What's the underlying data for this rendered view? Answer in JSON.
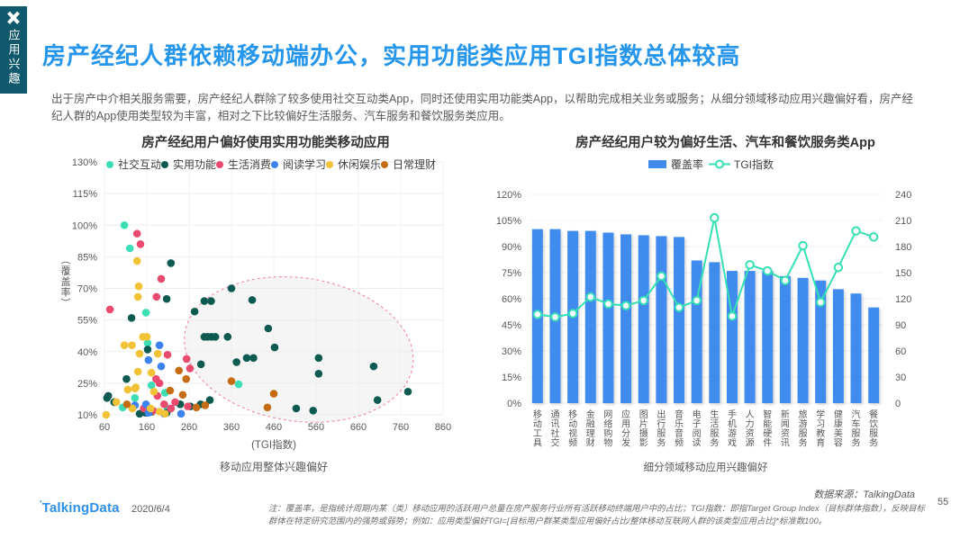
{
  "page": {
    "side_tab": {
      "label": "应用兴趣"
    },
    "title": "房产经纪人群依赖移动端办公，实用功能类应用TGI指数总体较高",
    "paragraph": "出于房产中介相关服务需要，房产经纪人群除了较多使用社交互动类App，同时还使用实用功能类App，以帮助完成相关业务或服务；从细分领域移动应用兴趣偏好看，房产经纪人群的App使用类型较为丰富，相对之下比较偏好生活服务、汽车服务和餐饮服务类应用。",
    "footer": {
      "logo": "TalkingData",
      "date": "2020/6/4",
      "note": "注：覆盖率，是指统计周期内某（类）移动应用的活跃用户总量在房产服务行业所有活跃移动终端用户中的占比；TGI指数：即指Target Group Index（目标群体指数），反映目标群体在特定研究范围内的强势或弱势；例如：应用类型偏好TGI=[目标用户群某类型应用偏好占比/整体移动互联网人群的该类型应用占比]*标准数100。",
      "page_number": "55"
    },
    "colors": {
      "accent_blue": "#2696ed",
      "bar_blue": "#3f8cee",
      "mint": "#35e0b4",
      "tab_teal": "#10586c"
    }
  },
  "chart_data": [
    {
      "type": "scatter",
      "title": "房产经纪用户偏好使用实用功能类移动应用",
      "xlabel": "(TGI指数)",
      "xlabel_caption": "移动应用整体兴趣偏好",
      "ylabel": "（覆盖率）",
      "xlim": [
        60,
        860
      ],
      "ylim": [
        10,
        130
      ],
      "xticks": [
        60,
        160,
        260,
        360,
        460,
        560,
        660,
        760,
        860
      ],
      "yticks": [
        "10%",
        "25%",
        "40%",
        "55%",
        "70%",
        "85%",
        "100%",
        "115%",
        "130%"
      ],
      "grid": true,
      "legend_position": "top",
      "highlight_ellipse": {
        "center_tgi": 519,
        "center_coverage": 41,
        "rx_tgi": 272,
        "ry_coverage": 34,
        "rotate_deg": 8,
        "stroke": "#f093b0",
        "fill": "#ededed"
      },
      "series": [
        {
          "name": "社交互动",
          "color": "#3cdfb5",
          "points": [
            [
              107,
              100
            ],
            [
              120,
              89
            ],
            [
              158,
              58.5
            ],
            [
              162,
              44
            ],
            [
              377,
              24.5
            ],
            [
              171,
              24
            ],
            [
              203,
              20.5
            ],
            [
              132,
              18
            ],
            [
              103,
              13.5
            ],
            [
              209,
              13
            ]
          ]
        },
        {
          "name": "实用功能",
          "color": "#0d5a50",
          "points": [
            [
              217,
              82
            ],
            [
              207,
              65
            ],
            [
              124,
              56
            ],
            [
              162,
              41
            ],
            [
              112,
              27
            ],
            [
              69,
              19
            ],
            [
              66,
              18
            ],
            [
              83,
              16
            ],
            [
              296,
              64
            ],
            [
              312,
              64
            ],
            [
              273,
              59
            ],
            [
              360,
              70
            ],
            [
              409,
              64.5
            ],
            [
              296,
              47
            ],
            [
              304,
              47
            ],
            [
              313,
              47
            ],
            [
              322,
              47
            ],
            [
              351,
              47
            ],
            [
              396,
              37
            ],
            [
              412,
              37
            ],
            [
              447,
              51
            ],
            [
              462,
              42
            ],
            [
              372,
              35
            ],
            [
              288,
              34
            ],
            [
              566,
              37
            ],
            [
              566,
              29.5
            ],
            [
              696,
              33
            ],
            [
              777,
              21
            ],
            [
              705,
              17
            ],
            [
              309,
              17
            ],
            [
              287,
              15
            ],
            [
              513,
              13
            ],
            [
              553,
              12
            ],
            [
              143,
              10.5
            ],
            [
              157,
              11
            ],
            [
              172,
              11.5
            ],
            [
              207,
              11
            ],
            [
              239,
              15
            ],
            [
              263,
              14
            ]
          ]
        },
        {
          "name": "生活消费",
          "color": "#e94a6e",
          "points": [
            [
              137,
              96
            ],
            [
              145,
              91
            ],
            [
              194,
              74.5
            ],
            [
              183,
              66
            ],
            [
              73,
              60
            ],
            [
              209,
              38.5
            ],
            [
              254,
              36.5
            ],
            [
              262,
              32
            ],
            [
              182,
              27
            ],
            [
              190,
              25
            ],
            [
              185,
              19
            ],
            [
              227,
              16
            ],
            [
              217,
              13
            ],
            [
              153,
              13
            ],
            [
              175,
              12
            ],
            [
              201,
              15
            ],
            [
              257,
              14
            ]
          ]
        },
        {
          "name": "阅读学习",
          "color": "#3c82f0",
          "points": [
            [
              190,
              43
            ],
            [
              164,
              36
            ],
            [
              194,
              33
            ],
            [
              158,
              15
            ],
            [
              132,
              14.5
            ],
            [
              164,
              11
            ],
            [
              241,
              10.5
            ],
            [
              201,
              10.5
            ]
          ]
        },
        {
          "name": "休闲娱乐",
          "color": "#f2c236",
          "points": [
            [
              137,
              83
            ],
            [
              141,
              71
            ],
            [
              139,
              66
            ],
            [
              151,
              47
            ],
            [
              160,
              47
            ],
            [
              107,
              43
            ],
            [
              125,
              43
            ],
            [
              143,
              39
            ],
            [
              186,
              39
            ],
            [
              139,
              30.5
            ],
            [
              171,
              30
            ],
            [
              134,
              23
            ],
            [
              177,
              21
            ],
            [
              115,
              22
            ],
            [
              132,
              22.5
            ],
            [
              88,
              16
            ],
            [
              126,
              13
            ],
            [
              169,
              13
            ],
            [
              190,
              11.5
            ],
            [
              203,
              10.5
            ],
            [
              64,
              10
            ]
          ]
        },
        {
          "name": "日常理财",
          "color": "#c66c15",
          "points": [
            [
              236,
              31
            ],
            [
              253,
              27
            ],
            [
              360,
              26
            ],
            [
              245,
              19.5
            ],
            [
              215,
              21.5
            ],
            [
              298,
              14.5
            ],
            [
              277,
              13.5
            ],
            [
              113,
              15
            ],
            [
              460,
              20
            ],
            [
              445,
              13.5
            ]
          ]
        }
      ]
    },
    {
      "type": "bar+line",
      "title": "房产经纪用户较为偏好生活、汽车和餐饮服务类App",
      "categories": [
        "移动工具",
        "通讯社交",
        "移动视频",
        "金融理财",
        "网络购物",
        "应用分发",
        "图片摄影",
        "出行服务",
        "音乐音频",
        "电子阅读",
        "生活服务",
        "手机游戏",
        "人力资源",
        "智能硬件",
        "新闻资讯",
        "旅游服务",
        "学习教育",
        "健康美容",
        "汽车服务",
        "餐饮服务"
      ],
      "series": [
        {
          "name": "覆盖率",
          "type": "bar",
          "axis": "left",
          "color": "#3f8cee",
          "values": [
            100,
            100,
            99,
            99,
            98,
            97,
            96.5,
            96,
            95.5,
            82,
            81,
            76,
            76,
            76,
            73,
            72,
            70.5,
            65.5,
            63,
            55
          ]
        },
        {
          "name": "TGI指数",
          "type": "line",
          "axis": "right",
          "color": "#35e0b4",
          "values": [
            102,
            99,
            103,
            122,
            114,
            112,
            118,
            146,
            110,
            118,
            213,
            100,
            159,
            152,
            141,
            181,
            116,
            156,
            198,
            191
          ]
        }
      ],
      "left_axis": {
        "min": 0,
        "max": 120,
        "step": 15,
        "labels": [
          "0%",
          "15%",
          "30%",
          "45%",
          "60%",
          "75%",
          "90%",
          "105%",
          "120%"
        ]
      },
      "right_axis": {
        "min": 0,
        "max": 240,
        "step": 30,
        "labels": [
          "0",
          "30",
          "60",
          "90",
          "120",
          "150",
          "180",
          "210",
          "240"
        ]
      },
      "xlabel": "细分领域移动应用兴趣偏好",
      "source": "数据来源：TalkingData",
      "grid": true,
      "legend_position": "top"
    }
  ]
}
